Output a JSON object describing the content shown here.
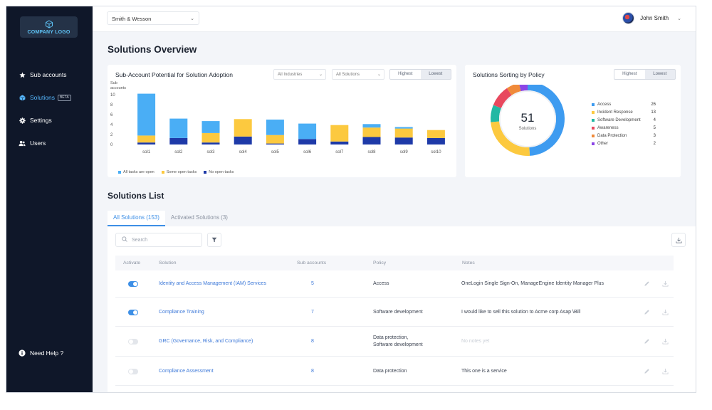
{
  "logo": {
    "text": "COMPANY LOGO"
  },
  "sidebar": {
    "items": [
      {
        "label": "Sub accounts",
        "icon": "star-icon"
      },
      {
        "label": "Solutions",
        "icon": "cube-icon",
        "badge": "BETA",
        "active": true
      },
      {
        "label": "Settings",
        "icon": "gear-icon"
      },
      {
        "label": "Users",
        "icon": "users-icon"
      }
    ],
    "help": "Need Help ?"
  },
  "topbar": {
    "account": "Smith & Wesson",
    "user": "John Smith"
  },
  "page": {
    "title": "Solutions Overview"
  },
  "potential": {
    "title": "Sub-Account Potential for Solution Adoption",
    "filter_industries": "All Industries",
    "filter_solutions": "All Solutions",
    "toggle": [
      "Highest",
      "Lowest"
    ]
  },
  "chart_data": [
    {
      "type": "bar",
      "stacked": true,
      "ylabel": "Sub accounts",
      "ylim": [
        0,
        10
      ],
      "yticks": [
        0,
        2,
        4,
        6,
        8,
        10
      ],
      "categories": [
        "sol1",
        "sol2",
        "sol3",
        "sol4",
        "sol5",
        "sol6",
        "sol7",
        "sol8",
        "sol9",
        "sol10"
      ],
      "series": [
        {
          "name": "No open tasks",
          "color": "#1e3aa8",
          "values": [
            0.4,
            1.3,
            0.4,
            1.6,
            0.2,
            1.1,
            0.6,
            1.5,
            1.4,
            1.3
          ]
        },
        {
          "name": "Some open tasks",
          "color": "#fcc93f",
          "values": [
            1.4,
            0,
            1.9,
            3.5,
            1.7,
            0,
            3.3,
            1.9,
            1.8,
            1.6
          ]
        },
        {
          "name": "All tasks are open",
          "color": "#4aaef5",
          "values": [
            8.4,
            3.9,
            2.4,
            0,
            3.1,
            3.1,
            0,
            0.7,
            0.3,
            0
          ]
        }
      ],
      "legend": [
        "All tasks are open",
        "Some open tasks",
        "No open tasks"
      ],
      "legend_position": "bottom-left"
    },
    {
      "type": "pie",
      "donut": true,
      "title": "Solutions Sorting by Policy",
      "center_value": "51",
      "center_label": "Solutions",
      "toggle": [
        "Highest",
        "Lowest"
      ],
      "categories": [
        "Access",
        "Incident Response",
        "Software Development",
        "Awareness",
        "Data Protection",
        "Other"
      ],
      "values": [
        26,
        13,
        4,
        5,
        3,
        2
      ],
      "colors": [
        "#3d9bf0",
        "#fcc93f",
        "#22b8a4",
        "#e8485e",
        "#f08a3a",
        "#8b45e6"
      ],
      "legend_position": "right"
    }
  ],
  "list": {
    "title": "Solutions List",
    "tabs": [
      "All Solutions (153)",
      "Activated Solutions (3)"
    ],
    "search_placeholder": "Search",
    "columns": [
      "Activate",
      "Solution",
      "Sub accounts",
      "Policy",
      "Notes"
    ],
    "rows": [
      {
        "active": true,
        "solution": "Identity and Access Management (IAM) Services",
        "sub_accounts": "5",
        "policy": "Access",
        "policy2": "",
        "notes": "OneLogin Single Sign-On, ManageEngine Identity Manager Plus",
        "notes_muted": false
      },
      {
        "active": true,
        "solution": "Compliance Training",
        "sub_accounts": "7",
        "policy": "Software development",
        "policy2": "",
        "notes": "I would like to sell this solution to Acme corp Asap \\Bill",
        "notes_muted": false
      },
      {
        "active": false,
        "solution": "GRC (Governance, Risk, and Compliance)",
        "sub_accounts": "8",
        "policy": "Data protection,",
        "policy2": "Software development",
        "notes": "No notes yet",
        "notes_muted": true
      },
      {
        "active": false,
        "solution": "Compliance Assessment",
        "sub_accounts": "8",
        "policy": "Data protection",
        "policy2": "",
        "notes": "This one is a service",
        "notes_muted": false
      }
    ]
  }
}
